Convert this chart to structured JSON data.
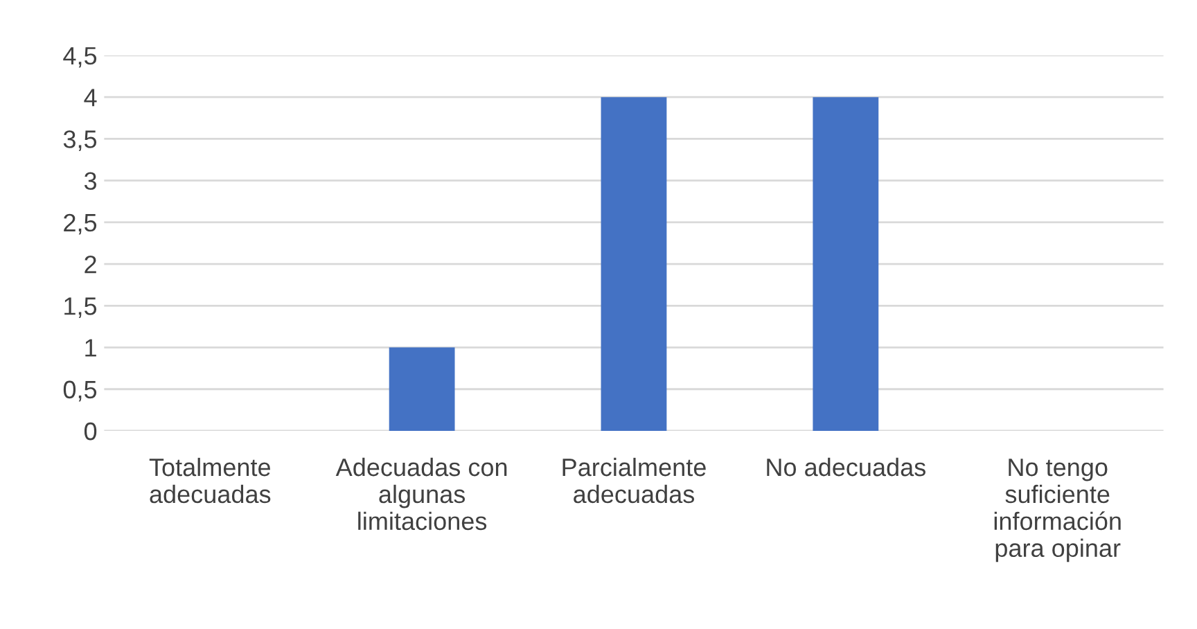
{
  "chart_data": {
    "type": "bar",
    "categories": [
      "Totalmente adecuadas",
      "Adecuadas con algunas limitaciones",
      "Parcialmente adecuadas",
      "No adecuadas",
      "No tengo suficiente información para opinar"
    ],
    "values": [
      0,
      1,
      4,
      4,
      0
    ],
    "color": "#4472c4",
    "ylim": [
      0,
      4.5
    ],
    "yticks": [
      0,
      {
        "value": 0.5,
        "label": "0,5"
      },
      1,
      {
        "value": 1.5,
        "label": "1,5"
      },
      2,
      {
        "value": 2.5,
        "label": "2,5"
      },
      3,
      {
        "value": 3.5,
        "label": "3,5"
      },
      4,
      {
        "value": 4.5,
        "label": "4,5"
      }
    ],
    "grid": "y",
    "legend": false
  }
}
